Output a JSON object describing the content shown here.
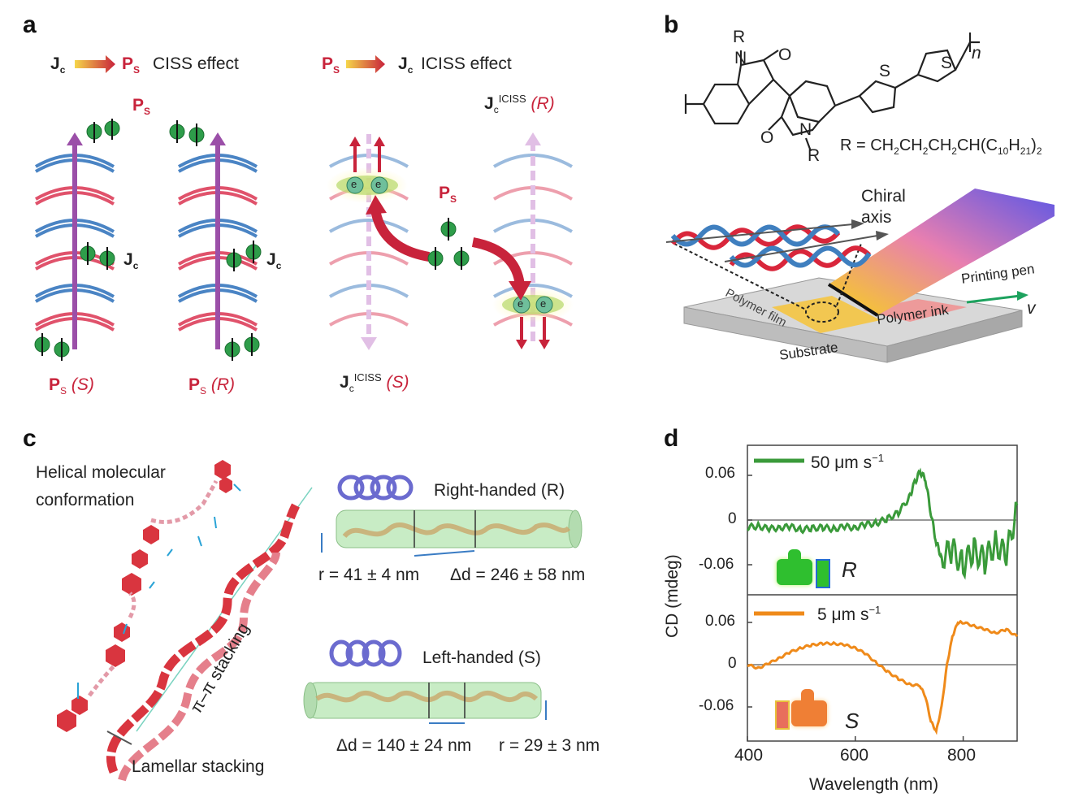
{
  "panels": {
    "a": "a",
    "b": "b",
    "c": "c",
    "d": "d"
  },
  "panel_a": {
    "left_header_from": "J",
    "left_header_from_sub": "c",
    "left_header_to": "P",
    "left_header_to_sub": "S",
    "left_header_effect": "CISS effect",
    "right_header_from": "P",
    "right_header_from_sub": "S",
    "right_header_to": "J",
    "right_header_to_sub": "c",
    "right_header_effect": "ICISS effect",
    "ps_label": "P",
    "ps_sub": "S",
    "jc_label": "J",
    "jc_sub": "c",
    "ps_s_label": "(S)",
    "ps_r_label": "(R)",
    "jc_iciss_sup": "ICISS",
    "jc_iciss_r": "(R)",
    "jc_iciss_s": "(S)",
    "electron": "e"
  },
  "panel_b": {
    "atom_R": "R",
    "atom_N": "N",
    "atom_O": "O",
    "atom_S": "S",
    "repeat_n": "n",
    "r_group": "R = CH",
    "r_group_tail": "CH(C",
    "chiral_axis_1": "Chiral",
    "chiral_axis_2": "axis",
    "printing_pen": "Printing pen",
    "velocity": "v",
    "polymer_film": "Polymer film",
    "polymer_ink": "Polymer ink",
    "substrate": "Substrate"
  },
  "panel_c": {
    "helical_1": "Helical molecular",
    "helical_2": "conformation",
    "pi_stacking": "π–π stacking",
    "lamellar": "Lamellar stacking",
    "right_handed": "Right-handed (R)",
    "left_handed": "Left-handed (S)",
    "r_right": "r = 41 ± 4 nm",
    "d_right": "Δd = 246 ± 58 nm",
    "d_left": "Δd = 140 ± 24 nm",
    "r_left": "r = 29 ± 3 nm"
  },
  "chart_data": {
    "type": "line",
    "xlabel": "Wavelength (nm)",
    "ylabel": "CD (mdeg)",
    "xlim": [
      400,
      900
    ],
    "x_ticks": [
      "400",
      "600",
      "800"
    ],
    "panels": [
      {
        "legend": "50 μm s",
        "legend_sup": "−1",
        "handedness": "R",
        "ylim": [
          -0.11,
          0.09
        ],
        "y_ticks": [
          "0.06",
          "0",
          "-0.06"
        ],
        "color": "#3a9a3a",
        "x": [
          400,
          420,
          440,
          460,
          480,
          500,
          520,
          540,
          560,
          580,
          600,
          620,
          640,
          660,
          680,
          700,
          710,
          720,
          730,
          740,
          750,
          760,
          780,
          800,
          820,
          840,
          860,
          880,
          900
        ],
        "y": [
          -0.01,
          -0.008,
          -0.012,
          -0.01,
          -0.009,
          -0.013,
          -0.011,
          -0.01,
          -0.012,
          -0.009,
          -0.01,
          -0.006,
          -0.004,
          0.002,
          0.01,
          0.03,
          0.05,
          0.065,
          0.055,
          0.01,
          -0.03,
          -0.05,
          -0.04,
          -0.06,
          -0.04,
          -0.055,
          -0.03,
          -0.05,
          0.02
        ]
      },
      {
        "legend": "5 μm s",
        "legend_sup": "−1",
        "handedness": "S",
        "ylim": [
          -0.11,
          0.09
        ],
        "y_ticks": [
          "0.06",
          "0",
          "-0.06"
        ],
        "color": "#ef8a1a",
        "x": [
          400,
          420,
          440,
          460,
          480,
          500,
          520,
          540,
          560,
          580,
          600,
          620,
          640,
          660,
          680,
          700,
          720,
          730,
          740,
          750,
          760,
          770,
          780,
          790,
          800,
          820,
          840,
          860,
          880,
          900
        ],
        "y": [
          0,
          -0.005,
          0.002,
          0.01,
          0.018,
          0.024,
          0.028,
          0.03,
          0.03,
          0.028,
          0.024,
          0.015,
          0.002,
          -0.01,
          -0.02,
          -0.028,
          -0.03,
          -0.045,
          -0.08,
          -0.095,
          -0.06,
          0.0,
          0.04,
          0.06,
          0.06,
          0.055,
          0.05,
          0.045,
          0.05,
          0.04
        ]
      }
    ]
  },
  "colors": {
    "red": "#c8233b",
    "blue": "#3f7fbf",
    "purple": "#9b4fa8",
    "green_electron": "#2e9d4a",
    "yellow": "#f5c542"
  }
}
